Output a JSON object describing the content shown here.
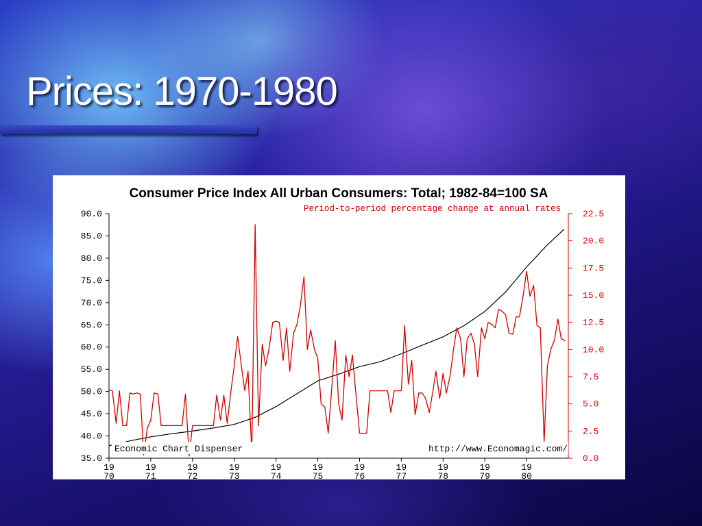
{
  "slide": {
    "title": "Prices: 1970-1980"
  },
  "chart_data": {
    "type": "line",
    "title": "Consumer Price Index All Urban Consumers: Total; 1982-84=100 SA",
    "subtitle": "Period-to-period percentage change at annual rates",
    "footer_left": "Economic Chart Dispenser",
    "footer_right": "http://www.Economagic.com/",
    "x_ticks": [
      {
        "line1": "19",
        "line2": "70"
      },
      {
        "line1": "19",
        "line2": "71"
      },
      {
        "line1": "19",
        "line2": "72"
      },
      {
        "line1": "19",
        "line2": "73"
      },
      {
        "line1": "19",
        "line2": "74"
      },
      {
        "line1": "19",
        "line2": "75"
      },
      {
        "line1": "19",
        "line2": "76"
      },
      {
        "line1": "19",
        "line2": "77"
      },
      {
        "line1": "19",
        "line2": "78"
      },
      {
        "line1": "19",
        "line2": "79"
      },
      {
        "line1": "19",
        "line2": "80"
      }
    ],
    "y_left_ticks": [
      "35.0",
      "40.0",
      "45.0",
      "50.0",
      "55.0",
      "60.0",
      "65.0",
      "70.0",
      "75.0",
      "80.0",
      "85.0",
      "90.0"
    ],
    "y_right_ticks": [
      "0.0",
      "2.5",
      "5.0",
      "7.5",
      "10.0",
      "12.5",
      "15.0",
      "17.5",
      "20.0",
      "22.5"
    ],
    "xlim": [
      1970,
      1981
    ],
    "y_left_lim": [
      35,
      90
    ],
    "y_right_lim": [
      0,
      22.5
    ],
    "series": [
      {
        "axis": "left",
        "color": "#000000",
        "x": [
          1970,
          1970.5,
          1971,
          1971.5,
          1972,
          1972.5,
          1973,
          1973.5,
          1974,
          1974.5,
          1975,
          1975.5,
          1976,
          1976.5,
          1977,
          1977.5,
          1978,
          1978.5,
          1979,
          1979.5,
          1980,
          1980.5,
          1980.9
        ],
        "values": [
          37.8,
          38.9,
          39.8,
          40.5,
          41.1,
          41.8,
          42.6,
          44.2,
          46.6,
          49.5,
          52.4,
          53.9,
          55.6,
          56.7,
          58.5,
          60.4,
          62.3,
          64.8,
          68.0,
          72.4,
          78.0,
          83.0,
          86.5
        ]
      },
      {
        "axis": "right",
        "color": "#d00000",
        "x": [
          1970.0,
          1970.08,
          1970.17,
          1970.25,
          1970.33,
          1970.42,
          1970.5,
          1970.58,
          1970.67,
          1970.75,
          1970.83,
          1970.92,
          1971.0,
          1971.08,
          1971.17,
          1971.25,
          1971.33,
          1971.42,
          1971.5,
          1971.58,
          1971.67,
          1971.75,
          1971.83,
          1971.92,
          1972.0,
          1972.08,
          1972.17,
          1972.25,
          1972.33,
          1972.42,
          1972.5,
          1972.58,
          1972.67,
          1972.75,
          1972.83,
          1972.92,
          1973.0,
          1973.08,
          1973.17,
          1973.25,
          1973.33,
          1973.42,
          1973.5,
          1973.58,
          1973.67,
          1973.75,
          1973.83,
          1973.92,
          1974.0,
          1974.08,
          1974.17,
          1974.25,
          1974.33,
          1974.42,
          1974.5,
          1974.58,
          1974.67,
          1974.75,
          1974.83,
          1974.92,
          1975.0,
          1975.08,
          1975.17,
          1975.25,
          1975.33,
          1975.42,
          1975.5,
          1975.58,
          1975.67,
          1975.75,
          1975.83,
          1975.92,
          1976.0,
          1976.08,
          1976.17,
          1976.25,
          1976.33,
          1976.42,
          1976.5,
          1976.58,
          1976.67,
          1976.75,
          1976.83,
          1976.92,
          1977.0,
          1977.08,
          1977.17,
          1977.25,
          1977.33,
          1977.42,
          1977.5,
          1977.58,
          1977.67,
          1977.75,
          1977.83,
          1977.92,
          1978.0,
          1978.08,
          1978.17,
          1978.25,
          1978.33,
          1978.42,
          1978.5,
          1978.58,
          1978.67,
          1978.75,
          1978.83,
          1978.92,
          1979.0,
          1979.08,
          1979.17,
          1979.25,
          1979.33,
          1979.42,
          1979.5,
          1979.58,
          1979.67,
          1979.75,
          1979.83,
          1979.92,
          1980.0,
          1980.08,
          1980.17,
          1980.25,
          1980.33,
          1980.42,
          1980.5,
          1980.58,
          1980.67,
          1980.75,
          1980.83,
          1980.92
        ],
        "values": [
          6.3,
          6.2,
          3.2,
          6.2,
          3.0,
          3.0,
          6.0,
          5.9,
          6.0,
          5.9,
          0.3,
          2.8,
          3.5,
          6.0,
          5.9,
          3.0,
          3.0,
          3.0,
          3.0,
          3.0,
          3.0,
          3.0,
          5.9,
          0.2,
          3.0,
          3.0,
          3.0,
          3.0,
          3.0,
          3.0,
          3.0,
          5.8,
          3.5,
          5.8,
          3.2,
          6.2,
          8.5,
          11.2,
          8.5,
          6.2,
          8.0,
          0.5,
          21.5,
          3.0,
          10.5,
          8.5,
          10.0,
          12.5,
          12.6,
          12.5,
          9.0,
          12.0,
          8.0,
          11.5,
          12.3,
          14.0,
          16.7,
          10.0,
          11.8,
          10.0,
          9.2,
          5.0,
          4.7,
          2.3,
          6.2,
          10.8,
          5.0,
          3.5,
          9.5,
          7.5,
          9.5,
          5.6,
          2.3,
          2.3,
          2.3,
          6.2,
          6.2,
          6.2,
          6.2,
          6.2,
          6.2,
          4.2,
          6.2,
          6.2,
          6.2,
          12.2,
          6.8,
          9.0,
          4.0,
          6.0,
          6.0,
          5.5,
          4.2,
          6.0,
          8.0,
          5.5,
          7.8,
          6.0,
          7.6,
          10.0,
          12.0,
          11.0,
          7.5,
          11.0,
          11.5,
          10.5,
          7.5,
          12.0,
          11.0,
          12.5,
          12.3,
          12.0,
          13.7,
          13.5,
          13.2,
          11.5,
          11.4,
          13.0,
          13.0,
          15.0,
          17.2,
          14.9,
          15.9,
          12.2,
          12.0,
          1.5,
          8.5,
          10.0,
          10.9,
          12.8,
          11.0,
          10.8
        ]
      }
    ]
  }
}
